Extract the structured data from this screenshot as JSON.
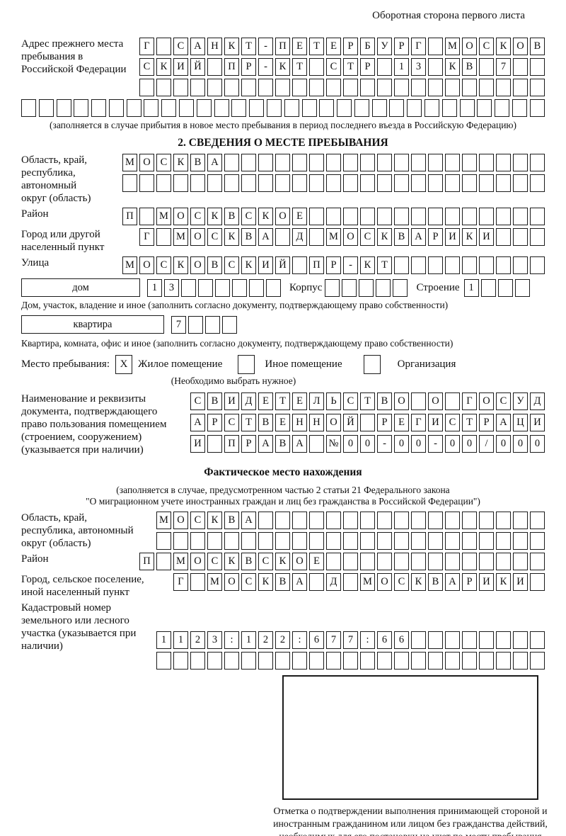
{
  "page": {
    "header_note": "Оборотная сторона первого листа"
  },
  "prev_address": {
    "label": "Адрес прежнего места пребывания в Российской Федерации",
    "row1": {
      "text": "Г САНКТ-ПЕТЕРБУРГ МОСКОВ",
      "len": 24
    },
    "row2": {
      "text": "СКИЙ ПР-КТ СТР 13 КВ 7",
      "len": 24
    },
    "row3": {
      "text": "",
      "len": 24
    },
    "row4": {
      "text": "",
      "len": 30
    },
    "note": "(заполняется в случае прибытия в новое место пребывания в период последнего въезда в Российскую Федерацию)"
  },
  "section2": {
    "title": "2. СВЕДЕНИЯ О МЕСТЕ ПРЕБЫВАНИЯ",
    "oblast": {
      "label": "Область, край, республика, автономный округ (область)",
      "row1": {
        "text": "МОСКВА",
        "len": 25
      },
      "row2": {
        "text": "",
        "len": 25
      }
    },
    "rayon": {
      "label": "Район",
      "row1": {
        "text": "П МОСКВСКОЕ",
        "len": 25
      }
    },
    "gorod": {
      "label": "Город или другой населенный пункт",
      "row1": {
        "text": "Г МОСКВА Д МОСКВАРИКИ",
        "len": 24
      }
    },
    "ulitsa": {
      "label": "Улица",
      "row1": {
        "text": "МОСКОВСКИЙ ПР-КТ",
        "len": 25
      }
    },
    "dom": {
      "box_label": "дом",
      "house": {
        "text": "13",
        "len": 8
      },
      "korpus_label": "Корпус",
      "korpus": {
        "text": "",
        "len": 5
      },
      "stroenie_label": "Строение",
      "stroenie": {
        "text": "1",
        "len": 4
      },
      "note": "Дом, участок, владение и иное (заполнить согласно документу, подтверждающему право собственности)"
    },
    "kvartira": {
      "box_label": "квартира",
      "cells": {
        "text": "7",
        "len": 4
      },
      "note": "Квартира, комната, офис и иное (заполнить согласно документу, подтверждающему право собственности)"
    },
    "mesto": {
      "label": "Место пребывания:",
      "options": [
        {
          "label": "Жилое помещение",
          "mark": "X"
        },
        {
          "label": "Иное помещение",
          "mark": ""
        },
        {
          "label": "Организация",
          "mark": ""
        }
      ],
      "note": "(Необходимо выбрать нужное)"
    },
    "document": {
      "label": "Наименование и реквизиты документа, подтверждающего право пользования помещением (строением, сооружением) (указывается при наличии)",
      "row1": {
        "text": "СВИДЕТЕЛЬСТВО О ГОСУД",
        "len": 21
      },
      "row2": {
        "text": "АРСТВЕННОЙ РЕГИСТРАЦИ",
        "len": 21
      },
      "row3": {
        "text": "И ПРАВА №00-00-00/000",
        "len": 21
      }
    }
  },
  "factual": {
    "title": "Фактическое место нахождения",
    "note1": "(заполняется в случае, предусмотренном частью 2 статьи 21 Федерального закона",
    "note2": "\"О миграционном учете иностранных граждан и лиц без гражданства в Российской Федерации\")",
    "oblast": {
      "label": "Область, край, республика, автономный округ (область)",
      "row1": {
        "text": "МОСКВА",
        "len": 23
      },
      "row2": {
        "text": "",
        "len": 23
      }
    },
    "rayon": {
      "label": "Район",
      "row1": {
        "text": "П МОСКВСКОЕ",
        "len": 24
      }
    },
    "gorod": {
      "label": "Город, сельское поселение, иной населенный пункт",
      "row1": {
        "text": "Г МОСКВА Д МОСКВАРИКИ",
        "len": 22
      }
    },
    "kadastr": {
      "label": "Кадастровый номер земельного или лесного участка (указывается при наличии)",
      "row1": {
        "text": "1123:122:677:66",
        "len": 23
      },
      "row2": {
        "text": "",
        "len": 23
      }
    }
  },
  "stamp": {
    "caption": "Отметка о подтверждении выполнения принимающей стороной и иностранным гражданином или лицом без гражданства действий, необходимых для его постановки на учет по месту пребывания"
  }
}
